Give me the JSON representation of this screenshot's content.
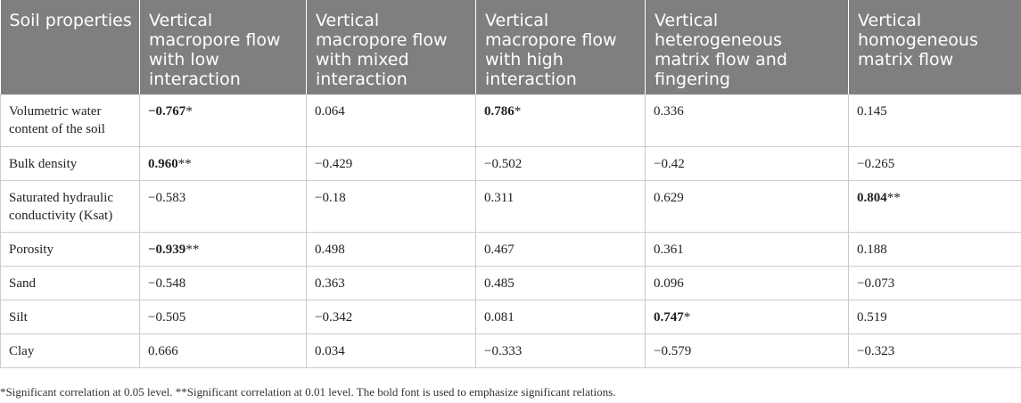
{
  "headers": [
    "Soil properties",
    "Vertical macropore flow with low interaction",
    "Vertical macropore flow with mixed interaction",
    "Vertical macropore flow with high interaction",
    "Vertical heterogeneous matrix flow and fingering",
    "Vertical homogeneous matrix flow"
  ],
  "rows": [
    {
      "label": "Volumetric water content of the soil",
      "values": [
        {
          "v": "−0.767",
          "sig": "*",
          "bold": true
        },
        {
          "v": "0.064",
          "sig": "",
          "bold": false
        },
        {
          "v": "0.786",
          "sig": "*",
          "bold": true
        },
        {
          "v": "0.336",
          "sig": "",
          "bold": false
        },
        {
          "v": "0.145",
          "sig": "",
          "bold": false
        }
      ]
    },
    {
      "label": "Bulk density",
      "values": [
        {
          "v": "0.960",
          "sig": "**",
          "bold": true
        },
        {
          "v": "−0.429",
          "sig": "",
          "bold": false
        },
        {
          "v": "−0.502",
          "sig": "",
          "bold": false
        },
        {
          "v": "−0.42",
          "sig": "",
          "bold": false
        },
        {
          "v": "−0.265",
          "sig": "",
          "bold": false
        }
      ]
    },
    {
      "label": "Saturated hydraulic conductivity (Ksat)",
      "values": [
        {
          "v": "−0.583",
          "sig": "",
          "bold": false
        },
        {
          "v": "−0.18",
          "sig": "",
          "bold": false
        },
        {
          "v": "0.311",
          "sig": "",
          "bold": false
        },
        {
          "v": "0.629",
          "sig": "",
          "bold": false
        },
        {
          "v": "0.804",
          "sig": "**",
          "bold": true
        }
      ]
    },
    {
      "label": "Porosity",
      "values": [
        {
          "v": "−0.939",
          "sig": "**",
          "bold": true
        },
        {
          "v": "0.498",
          "sig": "",
          "bold": false
        },
        {
          "v": "0.467",
          "sig": "",
          "bold": false
        },
        {
          "v": "0.361",
          "sig": "",
          "bold": false
        },
        {
          "v": "0.188",
          "sig": "",
          "bold": false
        }
      ]
    },
    {
      "label": "Sand",
      "values": [
        {
          "v": "−0.548",
          "sig": "",
          "bold": false
        },
        {
          "v": "0.363",
          "sig": "",
          "bold": false
        },
        {
          "v": "0.485",
          "sig": "",
          "bold": false
        },
        {
          "v": "0.096",
          "sig": "",
          "bold": false
        },
        {
          "v": "−0.073",
          "sig": "",
          "bold": false
        }
      ]
    },
    {
      "label": "Silt",
      "values": [
        {
          "v": "−0.505",
          "sig": "",
          "bold": false
        },
        {
          "v": "−0.342",
          "sig": "",
          "bold": false
        },
        {
          "v": "0.081",
          "sig": "",
          "bold": false
        },
        {
          "v": "0.747",
          "sig": "*",
          "bold": true
        },
        {
          "v": "0.519",
          "sig": "",
          "bold": false
        }
      ]
    },
    {
      "label": "Clay",
      "values": [
        {
          "v": "0.666",
          "sig": "",
          "bold": false
        },
        {
          "v": "0.034",
          "sig": "",
          "bold": false
        },
        {
          "v": "−0.333",
          "sig": "",
          "bold": false
        },
        {
          "v": "−0.579",
          "sig": "",
          "bold": false
        },
        {
          "v": "−0.323",
          "sig": "",
          "bold": false
        }
      ]
    }
  ],
  "footnote": "*Significant correlation at 0.05 level. **Significant correlation at 0.01 level. The bold font is used to emphasize significant relations.",
  "colors": {
    "header_bg": "#7f7f7f",
    "header_text": "#ffffff",
    "grid_line": "#cccccc"
  }
}
